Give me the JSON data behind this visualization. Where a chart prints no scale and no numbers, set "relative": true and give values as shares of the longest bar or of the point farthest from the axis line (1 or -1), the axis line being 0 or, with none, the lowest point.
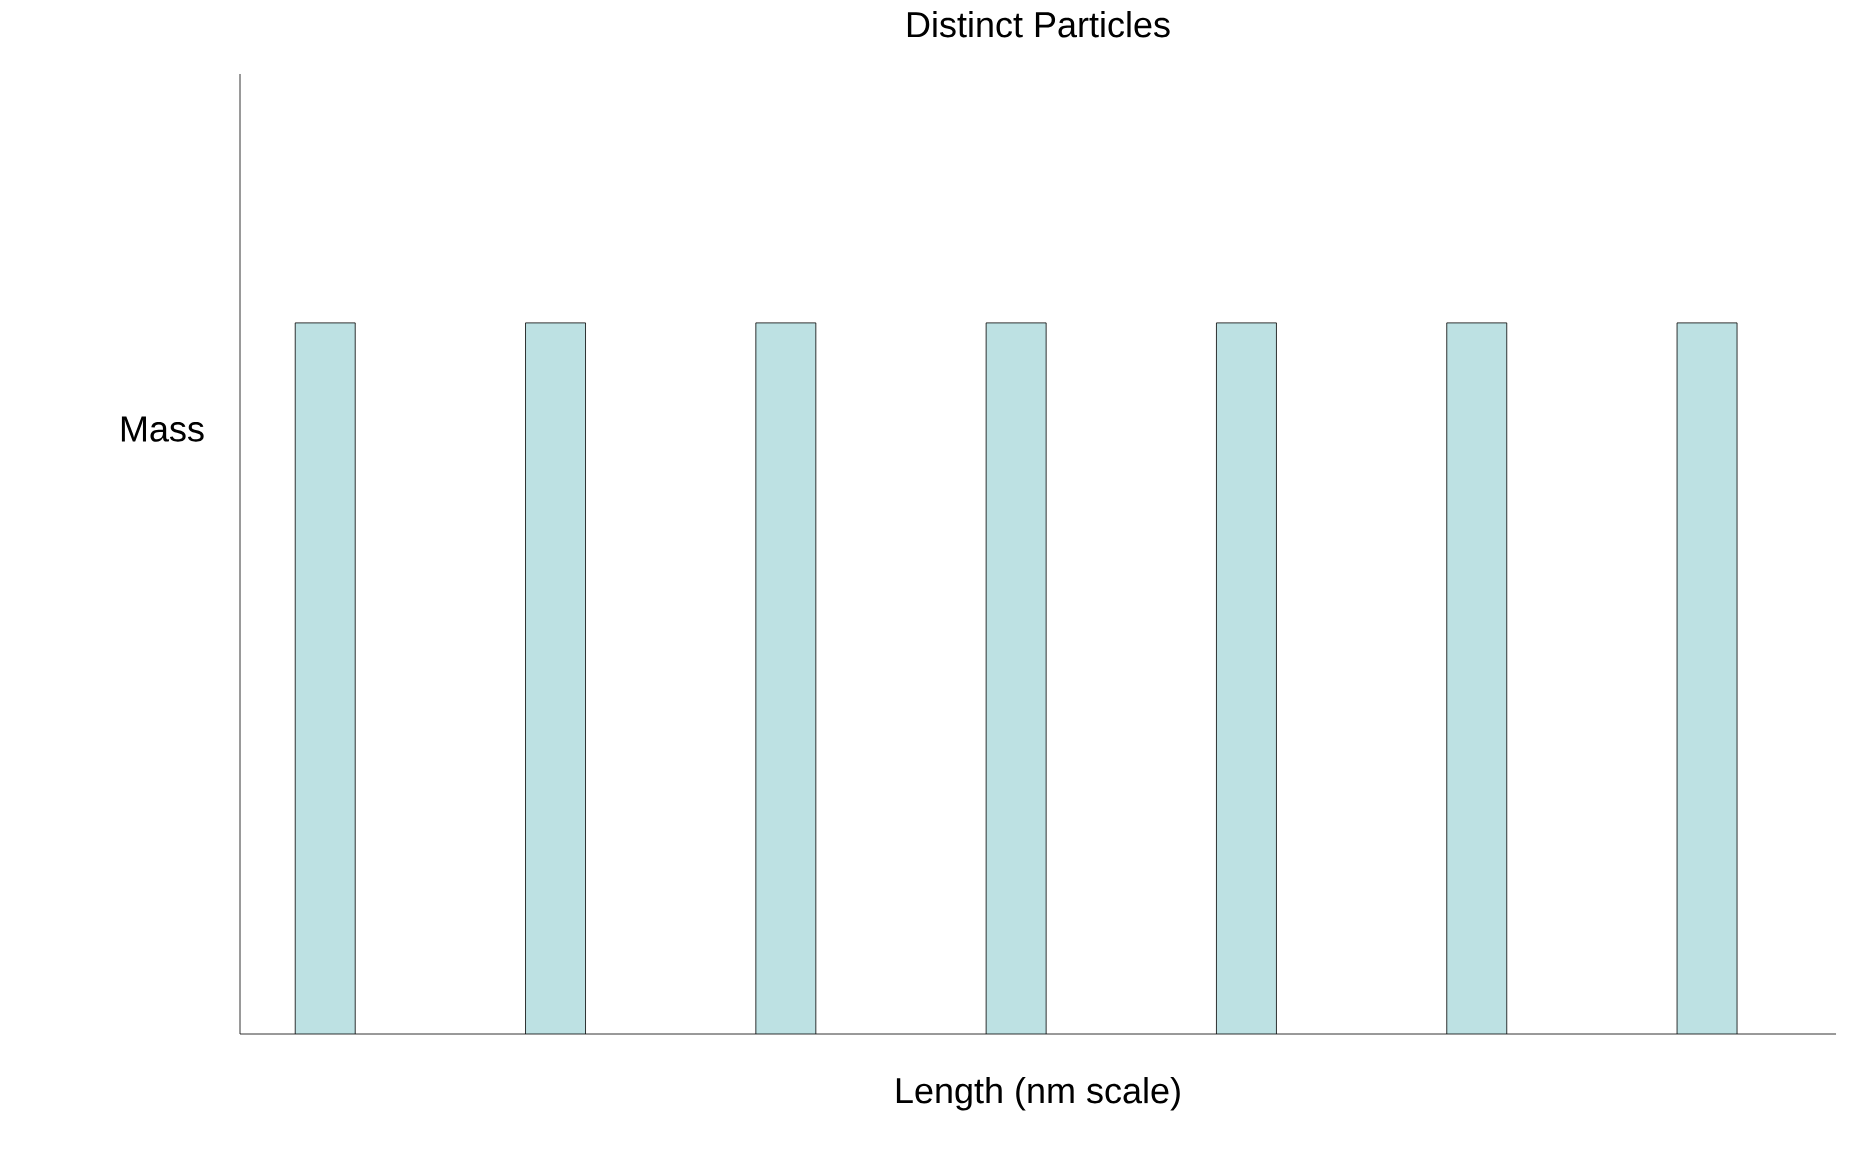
{
  "chart_data": {
    "type": "bar",
    "title": "Distinct Particles",
    "xlabel": "Length (nm scale)",
    "ylabel": "Mass",
    "relative": true,
    "categories": [
      null,
      null,
      null,
      null,
      null,
      null,
      null
    ],
    "series": [
      {
        "color": "#bde1e3",
        "values": [
          1,
          1,
          1,
          1,
          1,
          1,
          1
        ]
      }
    ]
  }
}
